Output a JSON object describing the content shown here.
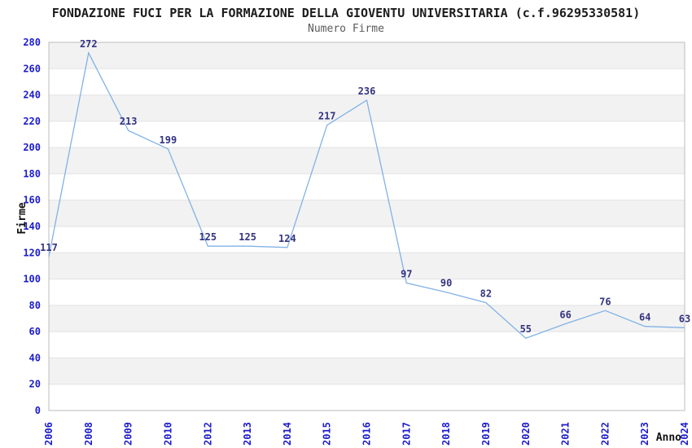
{
  "chart_data": {
    "type": "line",
    "title": "FONDAZIONE FUCI PER LA FORMAZIONE DELLA GIOVENTU UNIVERSITARIA (c.f.96295330581)",
    "subtitle": "Numero Firme",
    "xlabel": "Anno",
    "ylabel": "Firme",
    "categories": [
      "2006",
      "2008",
      "2009",
      "2010",
      "2012",
      "2013",
      "2014",
      "2015",
      "2016",
      "2017",
      "2018",
      "2019",
      "2020",
      "2021",
      "2022",
      "2023",
      "2024"
    ],
    "values": [
      117,
      272,
      213,
      199,
      125,
      125,
      124,
      217,
      236,
      97,
      90,
      82,
      55,
      66,
      76,
      64,
      63
    ],
    "ylim": [
      0,
      280
    ],
    "ytick_step": 20,
    "grid": true,
    "bands": "alternating horizontal 20-unit bands",
    "legend": "none",
    "colors": {
      "line": "#82b2e6",
      "tick_label": "#1c1ccc",
      "data_label": "#333380",
      "band": "#f2f2f2",
      "gridline": "#e2e2e2",
      "axis": "#bdbdbd",
      "title": "#1c1c1c",
      "subtitle": "#5a5a5a",
      "axis_title": "#111111"
    }
  }
}
